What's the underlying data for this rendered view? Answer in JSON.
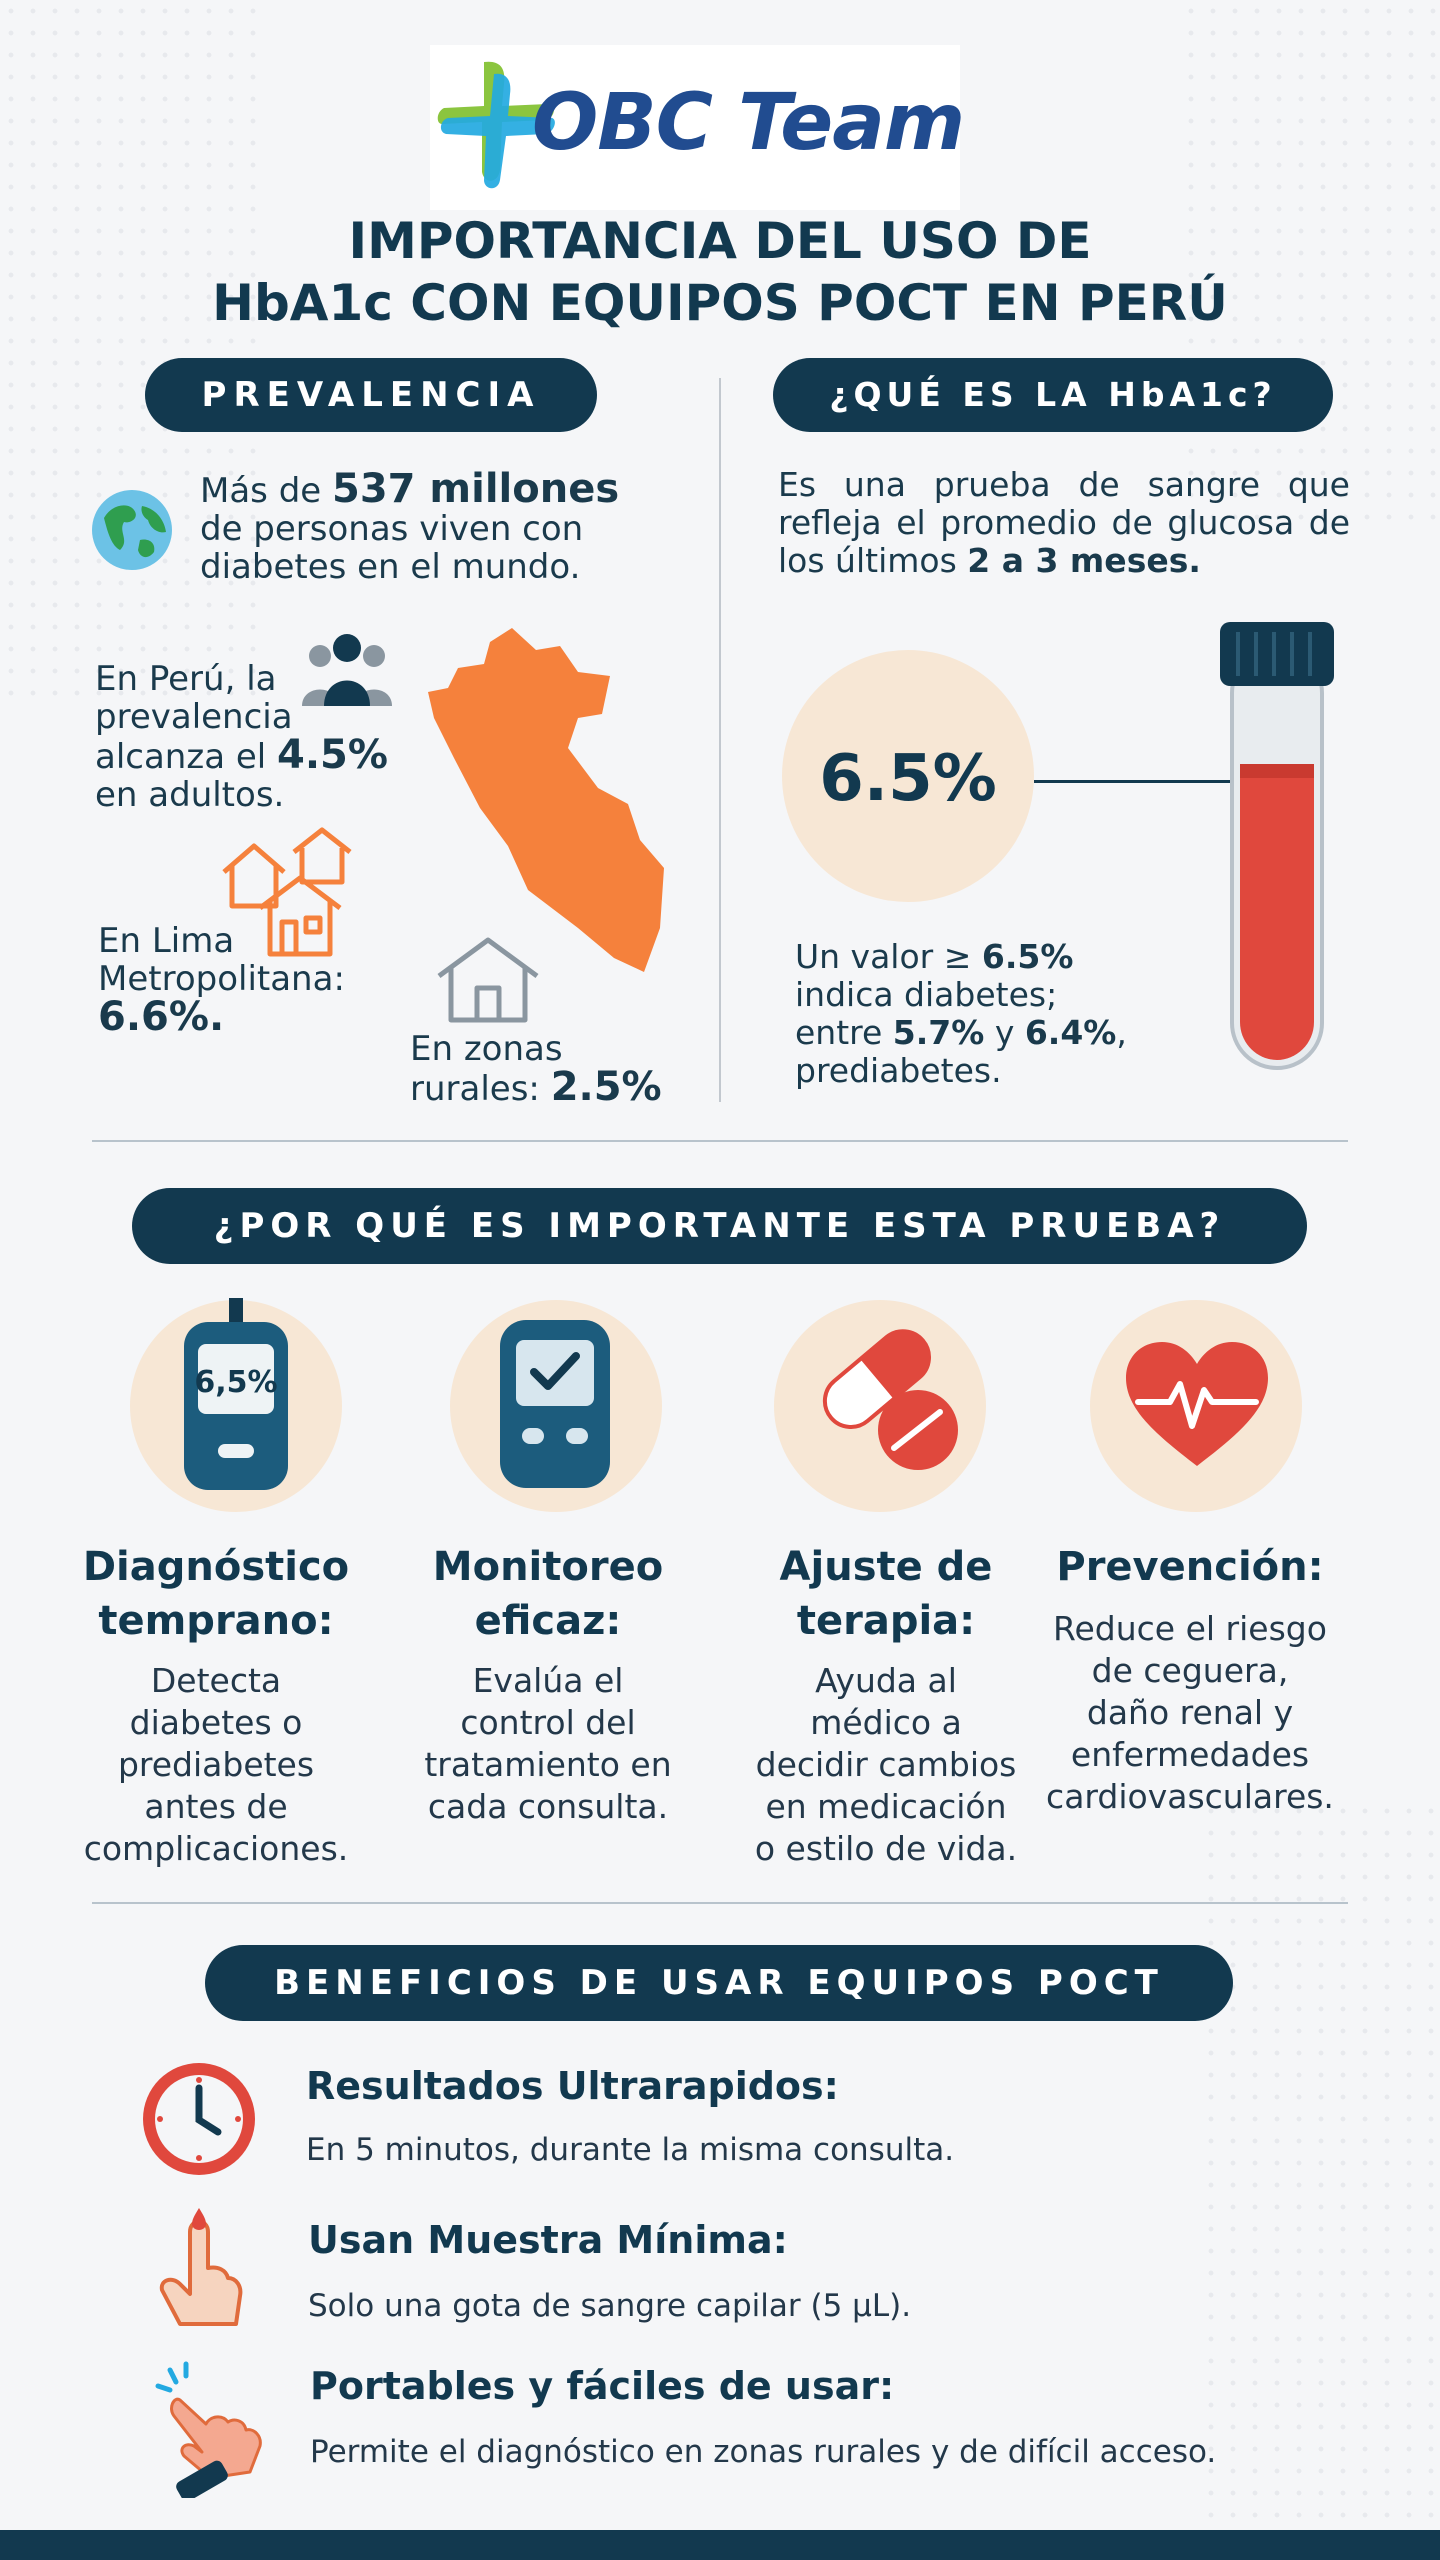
{
  "brand": {
    "logo_text": "OBC Team",
    "colors": {
      "navy": "#12394f",
      "brand_blue": "#214c90",
      "brand_cyan": "#23a9e1",
      "brand_green": "#8bc53f",
      "orange": "#f28c3c",
      "red": "#e04a3f",
      "peach": "#f7e7d5"
    }
  },
  "title": {
    "line1": "IMPORTANCIA DEL USO DE",
    "line2": "HbA1c CON EQUIPOS POCT EN PERÚ"
  },
  "prevalence": {
    "header": "PREVALENCIA",
    "world": {
      "prefix": "Más de ",
      "highlight": "537 millones",
      "line2": "de personas viven con",
      "line3": "diabetes en el mundo.",
      "icon": "globe-icon"
    },
    "peru": {
      "line1": "En Perú, la",
      "line2": "prevalencia",
      "line3_prefix": "alcanza el ",
      "line3_value": "4.5%",
      "line4": "en adultos.",
      "icon": "people-icon"
    },
    "lima": {
      "line1": "En Lima",
      "line2": "Metropolitana:",
      "value": "6.6%.",
      "icon": "houses-icon"
    },
    "rural": {
      "line1": "En zonas",
      "line2_prefix": "rurales: ",
      "value": "2.5%",
      "icon": "house-icon"
    },
    "map_icon": "peru-map-icon"
  },
  "what_is": {
    "header": "¿QUÉ ES LA HbA1c?",
    "description_prefix": "Es una prueba de sangre que refleja el promedio de glucosa de los últimos ",
    "description_bold": "2 a 3 meses.",
    "threshold_value": "6.5%",
    "note": {
      "line1_prefix": "Un valor ≥ ",
      "line1_value": "6.5%",
      "line2": "indica diabetes;",
      "line3_prefix": "entre ",
      "line3_value1": "5.7%",
      "line3_mid": " y ",
      "line3_value2": "6.4%",
      "line3_suffix": ",",
      "line4": "prediabetes."
    },
    "tube_icon": "blood-tube-icon"
  },
  "importance": {
    "header": "¿POR QUÉ ES IMPORTANTE ESTA PRUEBA?",
    "features": [
      {
        "title_line1": "Diagnóstico",
        "title_line2": "temprano:",
        "desc": [
          "Detecta",
          "diabetes o",
          "prediabetes",
          "antes de",
          "complicaciones."
        ],
        "icon": "glucometer-icon",
        "icon_text": "6,5%"
      },
      {
        "title_line1": "Monitoreo",
        "title_line2": "eficaz:",
        "desc": [
          "Evalúa el",
          "control del",
          "tratamiento en",
          "cada consulta."
        ],
        "icon": "monitor-check-icon"
      },
      {
        "title_line1": "Ajuste de",
        "title_line2": "terapia:",
        "desc": [
          "Ayuda al",
          "médico a",
          "decidir cambios",
          "en medicación",
          "o estilo de vida."
        ],
        "icon": "pills-icon"
      },
      {
        "title_line1": "Prevención:",
        "title_line2": "",
        "desc": [
          "Reduce el riesgo",
          "de ceguera,",
          "daño renal y",
          "enfermedades",
          "cardiovasculares."
        ],
        "icon": "heart-pulse-icon"
      }
    ]
  },
  "benefits": {
    "header": "BENEFICIOS DE USAR EQUIPOS POCT",
    "items": [
      {
        "title": "Resultados Ultrarapidos:",
        "desc": "En 5 minutos, durante la misma consulta.",
        "icon": "clock-icon"
      },
      {
        "title": "Usan Muestra Mínima:",
        "desc": "Solo una gota de sangre capilar (5 µL).",
        "icon": "finger-drop-icon"
      },
      {
        "title": "Portables y fáciles de usar:",
        "desc": "Permite el diagnóstico en zonas rurales y de difícil acceso.",
        "icon": "hand-tap-icon"
      }
    ]
  }
}
